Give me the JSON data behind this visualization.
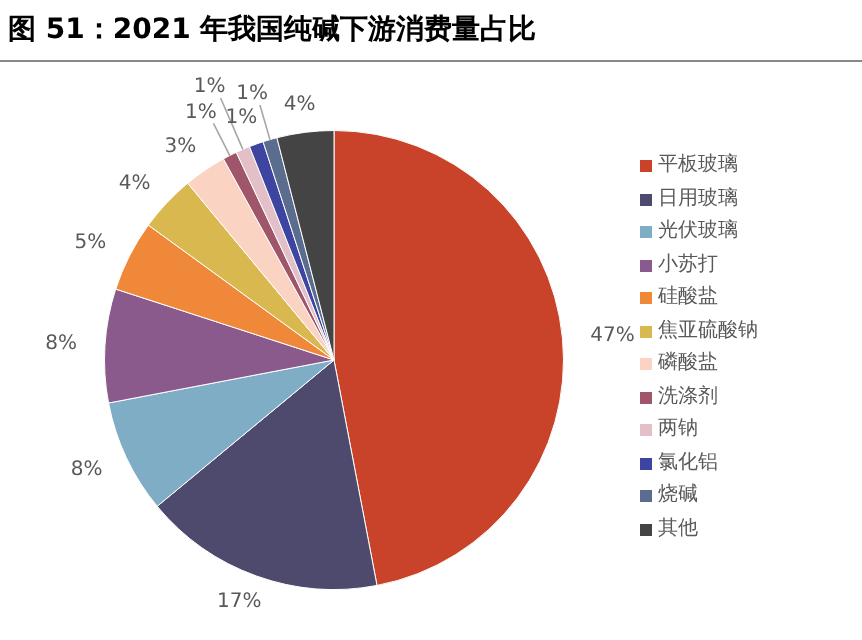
{
  "chart_data": {
    "type": "pie",
    "title": "图 51：2021 年我国纯碱下游消费量占比",
    "categories": [
      "平板玻璃",
      "日用玻璃",
      "光伏玻璃",
      "小苏打",
      "硅酸盐",
      "焦亚硫酸钠",
      "磷酸盐",
      "洗涤剂",
      "两钠",
      "氯化铝",
      "烧碱",
      "其他"
    ],
    "values": [
      47,
      17,
      8,
      8,
      5,
      4,
      3,
      1,
      1,
      1,
      1,
      4
    ],
    "value_labels": [
      "47%",
      "17%",
      "8%",
      "8%",
      "5%",
      "4%",
      "3%",
      "1%",
      "1%",
      "1%",
      "1%",
      "4%"
    ],
    "colors": [
      "#c8432a",
      "#4e4a6e",
      "#7fadc6",
      "#8a5a8c",
      "#f0883a",
      "#d9b84f",
      "#fbd3c3",
      "#a0566a",
      "#e3c0c8",
      "#3e45a0",
      "#5b6d8e",
      "#444444"
    ],
    "legend": "right"
  }
}
